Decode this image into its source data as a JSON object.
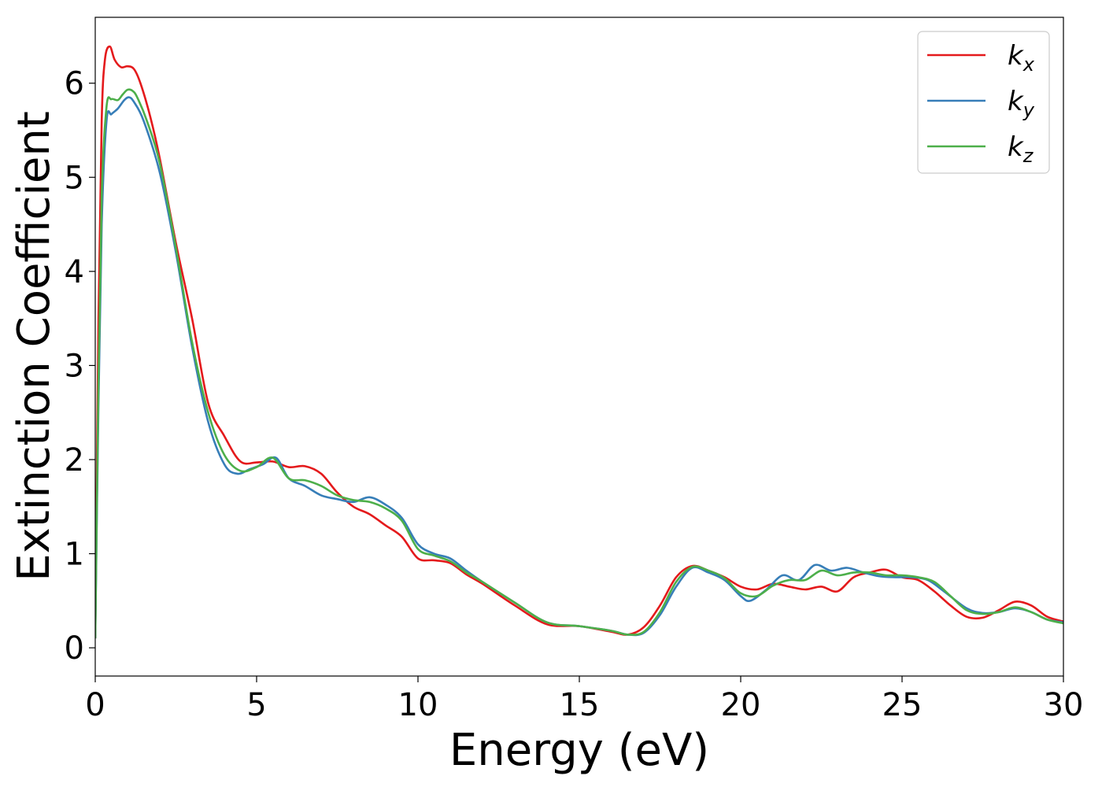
{
  "chart_data": {
    "type": "line",
    "title": "",
    "xlabel": "Energy (eV)",
    "ylabel": "Extinction Coefficient",
    "xlim": [
      0,
      30
    ],
    "ylim": [
      -0.3,
      6.7
    ],
    "xticks": [
      0,
      5,
      10,
      15,
      20,
      25,
      30
    ],
    "xtick_labels": [
      "0",
      "5",
      "10",
      "15",
      "20",
      "25",
      "30"
    ],
    "yticks": [
      0,
      1,
      2,
      3,
      4,
      5,
      6
    ],
    "ytick_labels": [
      "0",
      "1",
      "2",
      "3",
      "4",
      "5",
      "6"
    ],
    "grid": false,
    "legend_position": "top-right",
    "series": [
      {
        "name": "k",
        "subscript": "x",
        "color": "#e41a1c",
        "x": [
          0,
          0.1,
          0.2,
          0.3,
          0.45,
          0.6,
          0.8,
          1.0,
          1.2,
          1.4,
          1.7,
          2.0,
          2.5,
          3.0,
          3.5,
          4.0,
          4.5,
          5.0,
          5.5,
          6.0,
          6.5,
          7.0,
          7.5,
          8.0,
          8.5,
          9.0,
          9.5,
          10.0,
          10.5,
          11.0,
          11.5,
          12.0,
          13.0,
          14.0,
          15.0,
          16.0,
          16.5,
          17.0,
          17.5,
          18.0,
          18.5,
          19.0,
          19.5,
          20.0,
          20.5,
          21.0,
          21.5,
          22.0,
          22.5,
          23.0,
          23.5,
          24.0,
          24.5,
          25.0,
          25.5,
          26.0,
          26.5,
          27.0,
          27.5,
          28.0,
          28.5,
          29.0,
          29.5,
          30.0
        ],
        "y": [
          0.1,
          3.5,
          5.6,
          6.25,
          6.39,
          6.25,
          6.17,
          6.18,
          6.15,
          6.0,
          5.65,
          5.2,
          4.3,
          3.5,
          2.6,
          2.25,
          1.98,
          1.97,
          1.98,
          1.92,
          1.93,
          1.85,
          1.65,
          1.5,
          1.42,
          1.3,
          1.18,
          0.95,
          0.93,
          0.9,
          0.78,
          0.68,
          0.45,
          0.25,
          0.23,
          0.17,
          0.14,
          0.22,
          0.45,
          0.75,
          0.87,
          0.82,
          0.75,
          0.65,
          0.62,
          0.68,
          0.65,
          0.62,
          0.65,
          0.6,
          0.75,
          0.8,
          0.83,
          0.75,
          0.72,
          0.6,
          0.45,
          0.33,
          0.32,
          0.4,
          0.49,
          0.45,
          0.33,
          0.28
        ]
      },
      {
        "name": "k",
        "subscript": "y",
        "color": "#377eb8",
        "x": [
          0,
          0.1,
          0.2,
          0.35,
          0.5,
          0.7,
          0.9,
          1.05,
          1.2,
          1.5,
          2.0,
          2.5,
          3.0,
          3.5,
          4.0,
          4.4,
          4.8,
          5.2,
          5.6,
          6.0,
          6.5,
          7.0,
          7.5,
          8.0,
          8.5,
          9.0,
          9.5,
          10.0,
          10.5,
          11.0,
          11.5,
          12.0,
          13.0,
          14.0,
          15.0,
          16.0,
          16.5,
          17.0,
          17.5,
          18.0,
          18.5,
          19.0,
          19.5,
          20.0,
          20.3,
          20.8,
          21.3,
          21.8,
          22.3,
          22.8,
          23.3,
          23.8,
          24.3,
          24.8,
          25.3,
          25.8,
          26.3,
          27.0,
          27.5,
          28.0,
          28.5,
          29.0,
          29.5,
          30.0
        ],
        "y": [
          0.1,
          2.6,
          4.5,
          5.6,
          5.67,
          5.73,
          5.82,
          5.85,
          5.8,
          5.6,
          5.05,
          4.2,
          3.2,
          2.4,
          1.95,
          1.85,
          1.9,
          1.95,
          2.02,
          1.8,
          1.72,
          1.62,
          1.58,
          1.55,
          1.6,
          1.52,
          1.38,
          1.1,
          1.0,
          0.95,
          0.82,
          0.7,
          0.48,
          0.27,
          0.23,
          0.18,
          0.14,
          0.16,
          0.35,
          0.65,
          0.85,
          0.8,
          0.72,
          0.55,
          0.5,
          0.62,
          0.77,
          0.72,
          0.88,
          0.82,
          0.85,
          0.8,
          0.76,
          0.75,
          0.75,
          0.72,
          0.6,
          0.42,
          0.37,
          0.38,
          0.42,
          0.38,
          0.3,
          0.27
        ]
      },
      {
        "name": "k",
        "subscript": "z",
        "color": "#4daf4a",
        "x": [
          0,
          0.1,
          0.2,
          0.35,
          0.5,
          0.7,
          0.85,
          1.0,
          1.15,
          1.3,
          1.6,
          2.0,
          2.5,
          3.0,
          3.5,
          4.0,
          4.5,
          5.0,
          5.5,
          6.0,
          6.5,
          7.0,
          7.5,
          8.0,
          8.5,
          9.0,
          9.5,
          10.0,
          10.5,
          11.0,
          11.5,
          12.0,
          13.0,
          14.0,
          15.0,
          16.0,
          16.5,
          17.0,
          17.5,
          18.0,
          18.5,
          19.0,
          19.5,
          20.0,
          20.5,
          21.0,
          21.5,
          22.0,
          22.5,
          23.0,
          23.5,
          24.0,
          24.5,
          25.0,
          25.5,
          26.0,
          26.5,
          27.0,
          27.5,
          28.0,
          28.5,
          29.0,
          29.5,
          30.0
        ],
        "y": [
          0.1,
          2.8,
          4.8,
          5.75,
          5.83,
          5.82,
          5.88,
          5.93,
          5.92,
          5.85,
          5.6,
          5.15,
          4.25,
          3.25,
          2.5,
          2.05,
          1.88,
          1.92,
          2.02,
          1.8,
          1.78,
          1.72,
          1.62,
          1.57,
          1.55,
          1.48,
          1.35,
          1.05,
          0.98,
          0.92,
          0.8,
          0.7,
          0.48,
          0.27,
          0.23,
          0.18,
          0.14,
          0.17,
          0.38,
          0.7,
          0.86,
          0.82,
          0.74,
          0.58,
          0.55,
          0.66,
          0.72,
          0.72,
          0.82,
          0.77,
          0.8,
          0.8,
          0.77,
          0.77,
          0.75,
          0.7,
          0.55,
          0.4,
          0.36,
          0.38,
          0.43,
          0.38,
          0.3,
          0.26
        ]
      }
    ]
  }
}
